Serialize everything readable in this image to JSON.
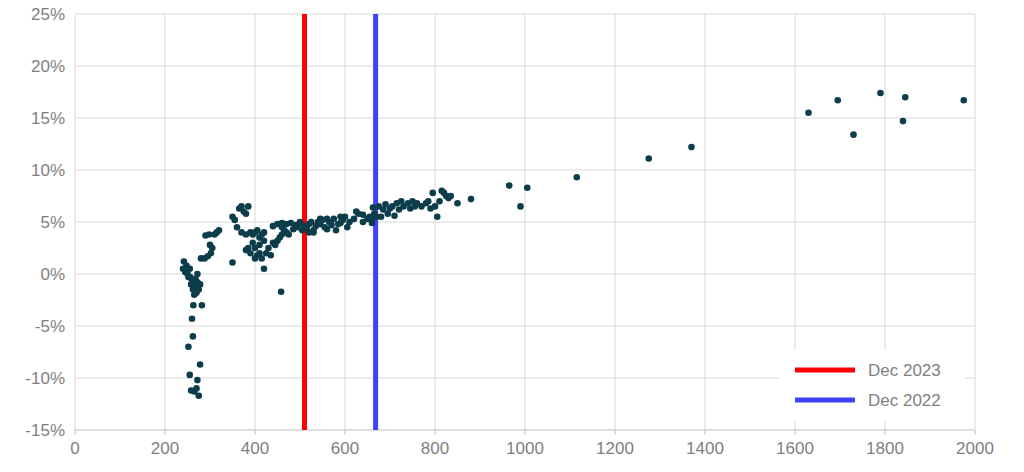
{
  "chart_data": {
    "type": "scatter",
    "xlim": [
      0,
      2000
    ],
    "ylim": [
      -15,
      25
    ],
    "xticks": [
      0,
      200,
      400,
      600,
      800,
      1000,
      1200,
      1400,
      1600,
      1800,
      2000
    ],
    "yticks": [
      {
        "value": -15,
        "label": "-15%"
      },
      {
        "value": -10,
        "label": "-10%"
      },
      {
        "value": -5,
        "label": "-5%"
      },
      {
        "value": 0,
        "label": "0%"
      },
      {
        "value": 5,
        "label": "5%"
      },
      {
        "value": 10,
        "label": "10%"
      },
      {
        "value": 15,
        "label": "15%"
      },
      {
        "value": 20,
        "label": "20%"
      },
      {
        "value": 25,
        "label": "25%"
      }
    ],
    "grid": true,
    "legend": "lower right",
    "series": [
      {
        "color": "#0d3d4a",
        "marker": "circle",
        "x": [
          240,
          242,
          245,
          248,
          250,
          252,
          255,
          258,
          260,
          262,
          265,
          263,
          260,
          262,
          268,
          270,
          272,
          275,
          278,
          280,
          282,
          278,
          272,
          270,
          275,
          265,
          258,
          255,
          252,
          268,
          272,
          270,
          266,
          256,
          246,
          290,
          295,
          298,
          300,
          305,
          310,
          315,
          320,
          302,
          288,
          350,
          355,
          360,
          365,
          370,
          375,
          380,
          385,
          370,
          380,
          390,
          395,
          400,
          405,
          410,
          415,
          420,
          350,
          380,
          385,
          390,
          395,
          400,
          405,
          410,
          415,
          420,
          425,
          430,
          435,
          440,
          445,
          450,
          455,
          460,
          400,
          410,
          420,
          458,
          440,
          450,
          460,
          470,
          480,
          490,
          500,
          465,
          475,
          485,
          495,
          505,
          510,
          460,
          470,
          515,
          520,
          525,
          530,
          535,
          540,
          545,
          550,
          555,
          560,
          565,
          570,
          575,
          580,
          585,
          590,
          595,
          600,
          605,
          610,
          620,
          530,
          545,
          560,
          590,
          500,
          520,
          625,
          630,
          640,
          650,
          655,
          660,
          662,
          665,
          670,
          675,
          680,
          685,
          690,
          695,
          700,
          640,
          660,
          705,
          710,
          715,
          720,
          725,
          730,
          740,
          745,
          750,
          755,
          760,
          770,
          780,
          785,
          790,
          795,
          800,
          805,
          810,
          815,
          820,
          825,
          830,
          835,
          850,
          880,
          965,
          990,
          1005,
          1115,
          1275,
          1370,
          1630,
          1695,
          1730,
          1790,
          1840,
          1845,
          1975
        ],
        "values": [
          0.5,
          1.2,
          0.2,
          0.8,
          0,
          -0.3,
          0.5,
          -1,
          -0.5,
          -1.5,
          -2,
          -3,
          -4.3,
          -6,
          -0.5,
          -1,
          0,
          -1.5,
          -1,
          1.5,
          -3,
          -8.7,
          -10.2,
          -11,
          -11.7,
          -11.3,
          -11.2,
          -9.7,
          -7,
          -1.2,
          -0.8,
          -1.8,
          -0.8,
          -0.3,
          0.4,
          3.7,
          1.7,
          3.8,
          2.8,
          2.5,
          3.8,
          4,
          4.2,
          2.0,
          1.5,
          5.5,
          5.2,
          4.5,
          6.3,
          6.5,
          6,
          5.8,
          6.5,
          4,
          3.8,
          4,
          3.8,
          4,
          4.2,
          3.5,
          3.8,
          4,
          1.1,
          2.3,
          2.5,
          2,
          3,
          1.5,
          1.8,
          2,
          1.5,
          0.5,
          2,
          2.5,
          1.8,
          3,
          2.8,
          3.2,
          3.5,
          3.8,
          2.5,
          2.8,
          3.2,
          -1.7,
          4.6,
          4.8,
          4.9,
          4.8,
          4.9,
          4.7,
          4.9,
          4.2,
          3.8,
          4.3,
          4.5,
          4.2,
          4.6,
          4.5,
          4.0,
          4.5,
          4.8,
          5,
          4.2,
          4.6,
          5,
          4.8,
          5.2,
          4.5,
          5.3,
          5,
          4.7,
          5.3,
          4.2,
          4.8,
          5.5,
          5.2,
          5.5,
          4.5,
          5,
          5.3,
          4.0,
          5.3,
          4.3,
          4.9,
          5,
          4.0,
          6,
          5.8,
          5.7,
          5.3,
          5.5,
          4.9,
          6.4,
          5.8,
          5.5,
          6.5,
          5.5,
          6.2,
          6.7,
          5.8,
          6.3,
          5,
          5.2,
          6.5,
          5.6,
          6.8,
          6.2,
          7,
          6.5,
          6.8,
          6.3,
          7,
          6.5,
          6.8,
          6.5,
          6.8,
          7,
          6.3,
          7.8,
          6.5,
          5.5,
          7,
          8,
          7.8,
          7.5,
          7.3,
          7.5,
          6.8,
          7.2,
          8.5,
          6.5,
          8.3,
          9.3,
          11.1,
          12.2,
          15.5,
          16.7,
          13.4,
          17.4,
          14.7,
          17,
          16.7
        ]
      }
    ],
    "reference_lines": [
      {
        "name": "Dec 2023",
        "x": 510,
        "color": "#ff0000"
      },
      {
        "name": "Dec 2022",
        "x": 668,
        "color": "#4040ff"
      }
    ]
  }
}
